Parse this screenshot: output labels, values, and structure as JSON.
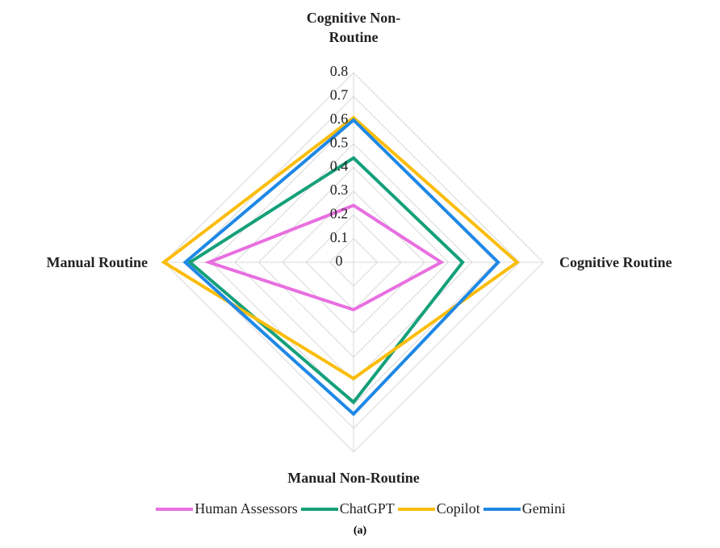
{
  "chart_data": {
    "type": "radar",
    "categories": [
      "Cognitive Non-Routine",
      "Cognitive Routine",
      "Manual Non-Routine",
      "Manual Routine"
    ],
    "series": [
      {
        "name": "Human Assessors",
        "color": "#e86fe0",
        "values": [
          0.24,
          0.37,
          0.2,
          0.61
        ]
      },
      {
        "name": "ChatGPT",
        "color": "#14a07a",
        "values": [
          0.44,
          0.46,
          0.59,
          0.69
        ]
      },
      {
        "name": "Copilot",
        "color": "#fbbd0c",
        "values": [
          0.61,
          0.69,
          0.49,
          0.8
        ]
      },
      {
        "name": "Gemini",
        "color": "#1f88e5",
        "values": [
          0.6,
          0.61,
          0.64,
          0.71
        ]
      }
    ],
    "rlim": [
      0,
      0.8
    ],
    "rticks": [
      0,
      0.1,
      0.2,
      0.3,
      0.4,
      0.5,
      0.6,
      0.7,
      0.8
    ],
    "grid": true,
    "legend": "bottom",
    "caption": "(a)"
  }
}
